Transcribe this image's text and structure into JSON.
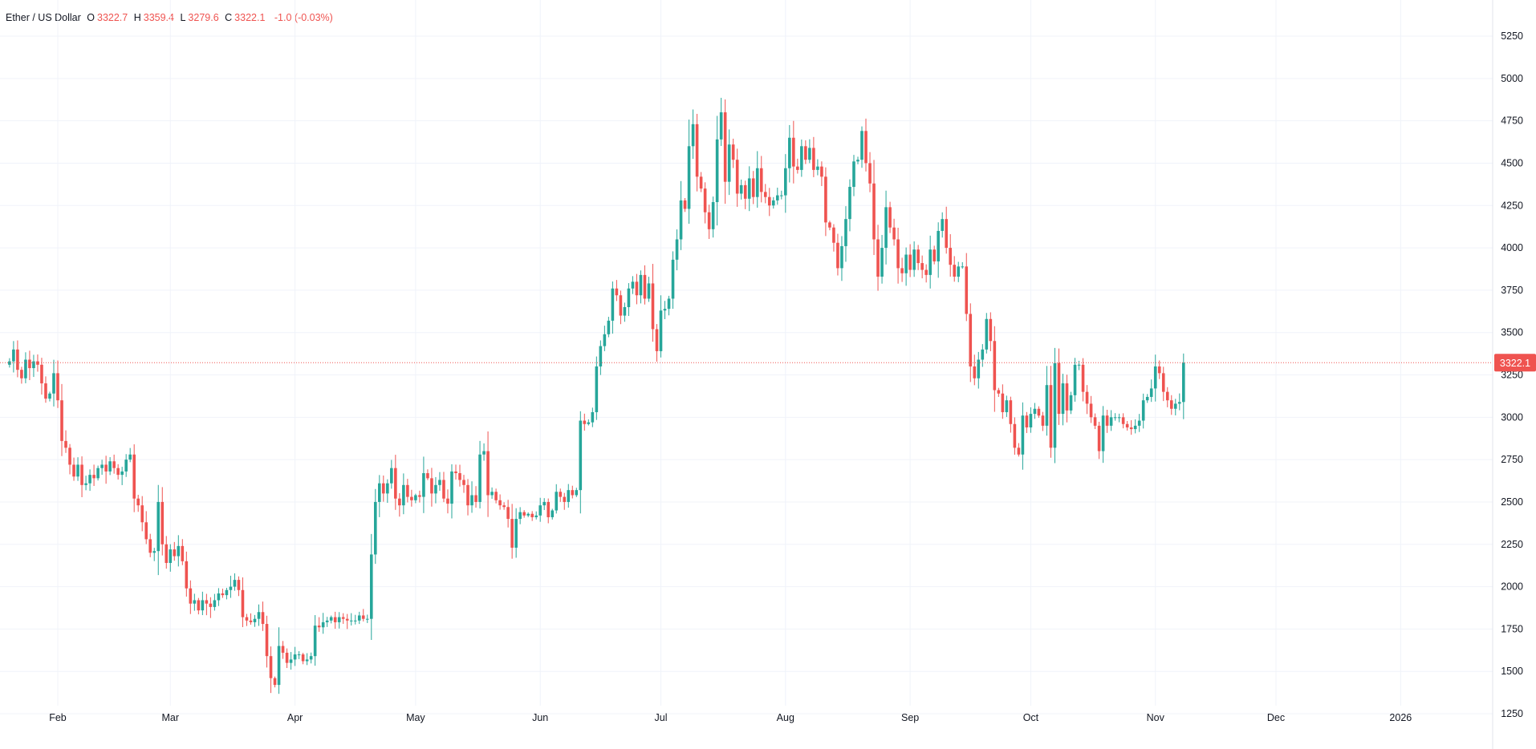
{
  "legend": {
    "symbol": "Ether / US Dollar",
    "open_label": "O",
    "open": "3322.7",
    "high_label": "H",
    "high": "3359.4",
    "low_label": "L",
    "low": "3279.6",
    "close_label": "C",
    "close": "3322.1",
    "change": "-1.0 (-0.03%)"
  },
  "last_price_label": "3322.1",
  "colors": {
    "up": "#26a69a",
    "down": "#ef5350",
    "grid": "#f0f3fa",
    "axis_text": "#131722"
  },
  "chart_data": {
    "type": "candlestick",
    "title": "",
    "xlabel": "",
    "ylabel": "",
    "ylim": [
      1250,
      5375
    ],
    "yticks": [
      1250,
      1500,
      1750,
      2000,
      2250,
      2500,
      2750,
      3000,
      3250,
      3500,
      3750,
      4000,
      4250,
      4500,
      4750,
      5000,
      5250
    ],
    "xticks": [
      {
        "label": "Feb",
        "x": "2025-02-01"
      },
      {
        "label": "Mar",
        "x": "2025-03-01"
      },
      {
        "label": "Apr",
        "x": "2025-04-01"
      },
      {
        "label": "May",
        "x": "2025-05-01"
      },
      {
        "label": "Jun",
        "x": "2025-06-01"
      },
      {
        "label": "Jul",
        "x": "2025-07-01"
      },
      {
        "label": "Aug",
        "x": "2025-08-01"
      },
      {
        "label": "Sep",
        "x": "2025-09-01"
      },
      {
        "label": "Oct",
        "x": "2025-10-01"
      },
      {
        "label": "Nov",
        "x": "2025-11-01"
      },
      {
        "label": "Dec",
        "x": "2025-12-01"
      },
      {
        "label": "2026",
        "x": "2026-01-01"
      }
    ],
    "grid": true,
    "last_price": 3322.1,
    "close_series": {
      "start": "2025-01-20",
      "interval": "1d",
      "values": [
        3330,
        3400,
        3280,
        3230,
        3340,
        3290,
        3330,
        3310,
        3200,
        3110,
        3140,
        3260,
        3100,
        2860,
        2820,
        2720,
        2650,
        2720,
        2600,
        2610,
        2660,
        2640,
        2700,
        2720,
        2680,
        2740,
        2700,
        2660,
        2680,
        2750,
        2780,
        2520,
        2480,
        2380,
        2280,
        2200,
        2210,
        2500,
        2250,
        2140,
        2220,
        2180,
        2240,
        2150,
        1990,
        1900,
        1920,
        1860,
        1920,
        1900,
        1880,
        1920,
        1960,
        1950,
        1980,
        2000,
        2040,
        1980,
        1820,
        1800,
        1790,
        1810,
        1850,
        1780,
        1590,
        1460,
        1420,
        1650,
        1610,
        1550,
        1570,
        1600,
        1600,
        1560,
        1570,
        1590,
        1770,
        1760,
        1790,
        1800,
        1820,
        1790,
        1820,
        1810,
        1800,
        1800,
        1800,
        1830,
        1810,
        1810,
        2190,
        2500,
        2610,
        2550,
        2610,
        2700,
        2520,
        2480,
        2600,
        2530,
        2510,
        2540,
        2530,
        2670,
        2640,
        2550,
        2600,
        2630,
        2520,
        2490,
        2680,
        2670,
        2630,
        2600,
        2480,
        2540,
        2500,
        2780,
        2800,
        2540,
        2560,
        2510,
        2480,
        2470,
        2400,
        2230,
        2400,
        2440,
        2420,
        2430,
        2410,
        2420,
        2480,
        2500,
        2410,
        2450,
        2560,
        2530,
        2500,
        2570,
        2540,
        2570,
        2980,
        2960,
        2970,
        3030,
        3300,
        3420,
        3490,
        3570,
        3760,
        3720,
        3600,
        3650,
        3760,
        3800,
        3720,
        3840,
        3700,
        3790,
        3520,
        3390,
        3630,
        3640,
        3700,
        3930,
        4050,
        4280,
        4230,
        4600,
        4730,
        4420,
        4350,
        4210,
        4110,
        4270,
        4640,
        4800,
        4390,
        4610,
        4520,
        4320,
        4370,
        4290,
        4410,
        4300,
        4470,
        4330,
        4300,
        4250,
        4280,
        4310,
        4310,
        4470,
        4650,
        4480,
        4460,
        4600,
        4520,
        4590,
        4460,
        4480,
        4420,
        4150,
        4120,
        4030,
        3880,
        4010,
        4170,
        4360,
        4510,
        4520,
        4690,
        4500,
        4380,
        4050,
        3830,
        4000,
        4240,
        4120,
        4050,
        3880,
        3850,
        3960,
        3870,
        3990,
        3910,
        3870,
        3840,
        3990,
        3920,
        4100,
        4170,
        4000,
        3900,
        3830,
        3890,
        3890,
        3610,
        3300,
        3230,
        3340,
        3400,
        3580,
        3450,
        3160,
        3140,
        3030,
        3100,
        2960,
        2820,
        2780,
        3010,
        2940,
        3020,
        3050,
        3010,
        2950,
        3190,
        2820,
        3320,
        3020,
        3200,
        3040,
        3130,
        3310,
        3310,
        3150,
        3080,
        3000,
        2950,
        2800,
        3010,
        2950,
        3000,
        3000,
        3000,
        2960,
        2940,
        2930,
        2950,
        2980,
        3100,
        3120,
        3170,
        3300,
        3260,
        3150,
        3100,
        3050,
        3080,
        3090,
        3322
      ]
    }
  }
}
